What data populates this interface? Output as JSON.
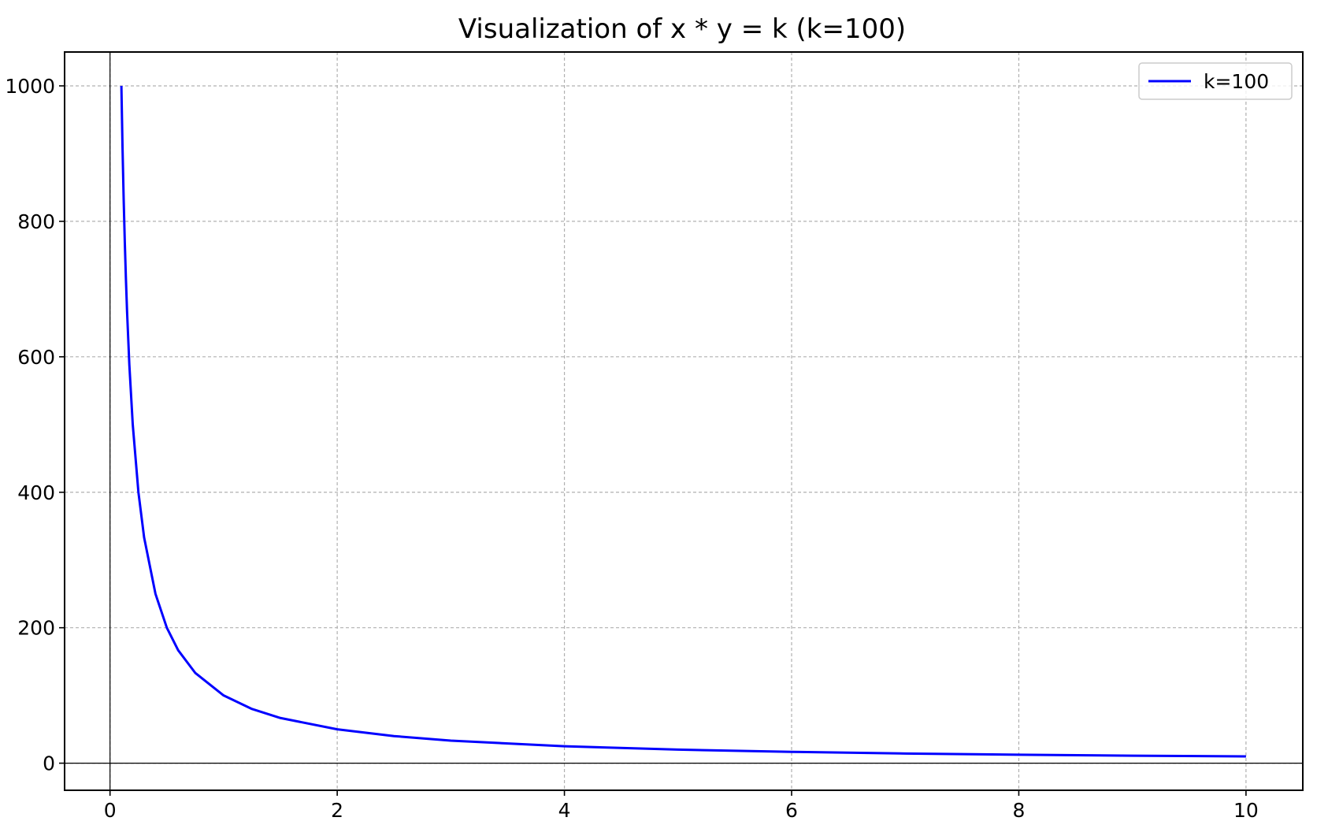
{
  "chart_data": {
    "type": "line",
    "title": "Visualization of x * y = k (k=100)",
    "xlabel": "",
    "ylabel": "",
    "xlim": [
      -0.4,
      10.5
    ],
    "ylim": [
      -40,
      1050
    ],
    "x_ticks": [
      0,
      2,
      4,
      6,
      8,
      10
    ],
    "x_tick_labels": [
      "0",
      "2",
      "4",
      "6",
      "8",
      "10"
    ],
    "y_ticks": [
      0,
      200,
      400,
      600,
      800,
      1000
    ],
    "y_tick_labels": [
      "0",
      "200",
      "400",
      "600",
      "800",
      "1000"
    ],
    "grid": true,
    "reference_lines": {
      "x": 0,
      "y": 0
    },
    "legend_position": "top-right",
    "series": [
      {
        "name": "k=100",
        "color": "#0000ff",
        "k": 100,
        "x": [
          0.1,
          0.11,
          0.12,
          0.13,
          0.14,
          0.15,
          0.17,
          0.2,
          0.25,
          0.3,
          0.4,
          0.5,
          0.6,
          0.75,
          1,
          1.25,
          1.5,
          2,
          2.5,
          3,
          4,
          5,
          6,
          7,
          8,
          9,
          10
        ],
        "y": [
          1000,
          909.1,
          833.3,
          769.2,
          714.3,
          666.7,
          588.2,
          500,
          400,
          333.3,
          250,
          200,
          166.7,
          133.3,
          100,
          80,
          66.7,
          50,
          40,
          33.3,
          25,
          20,
          16.7,
          14.3,
          12.5,
          11.1,
          10
        ]
      }
    ]
  }
}
